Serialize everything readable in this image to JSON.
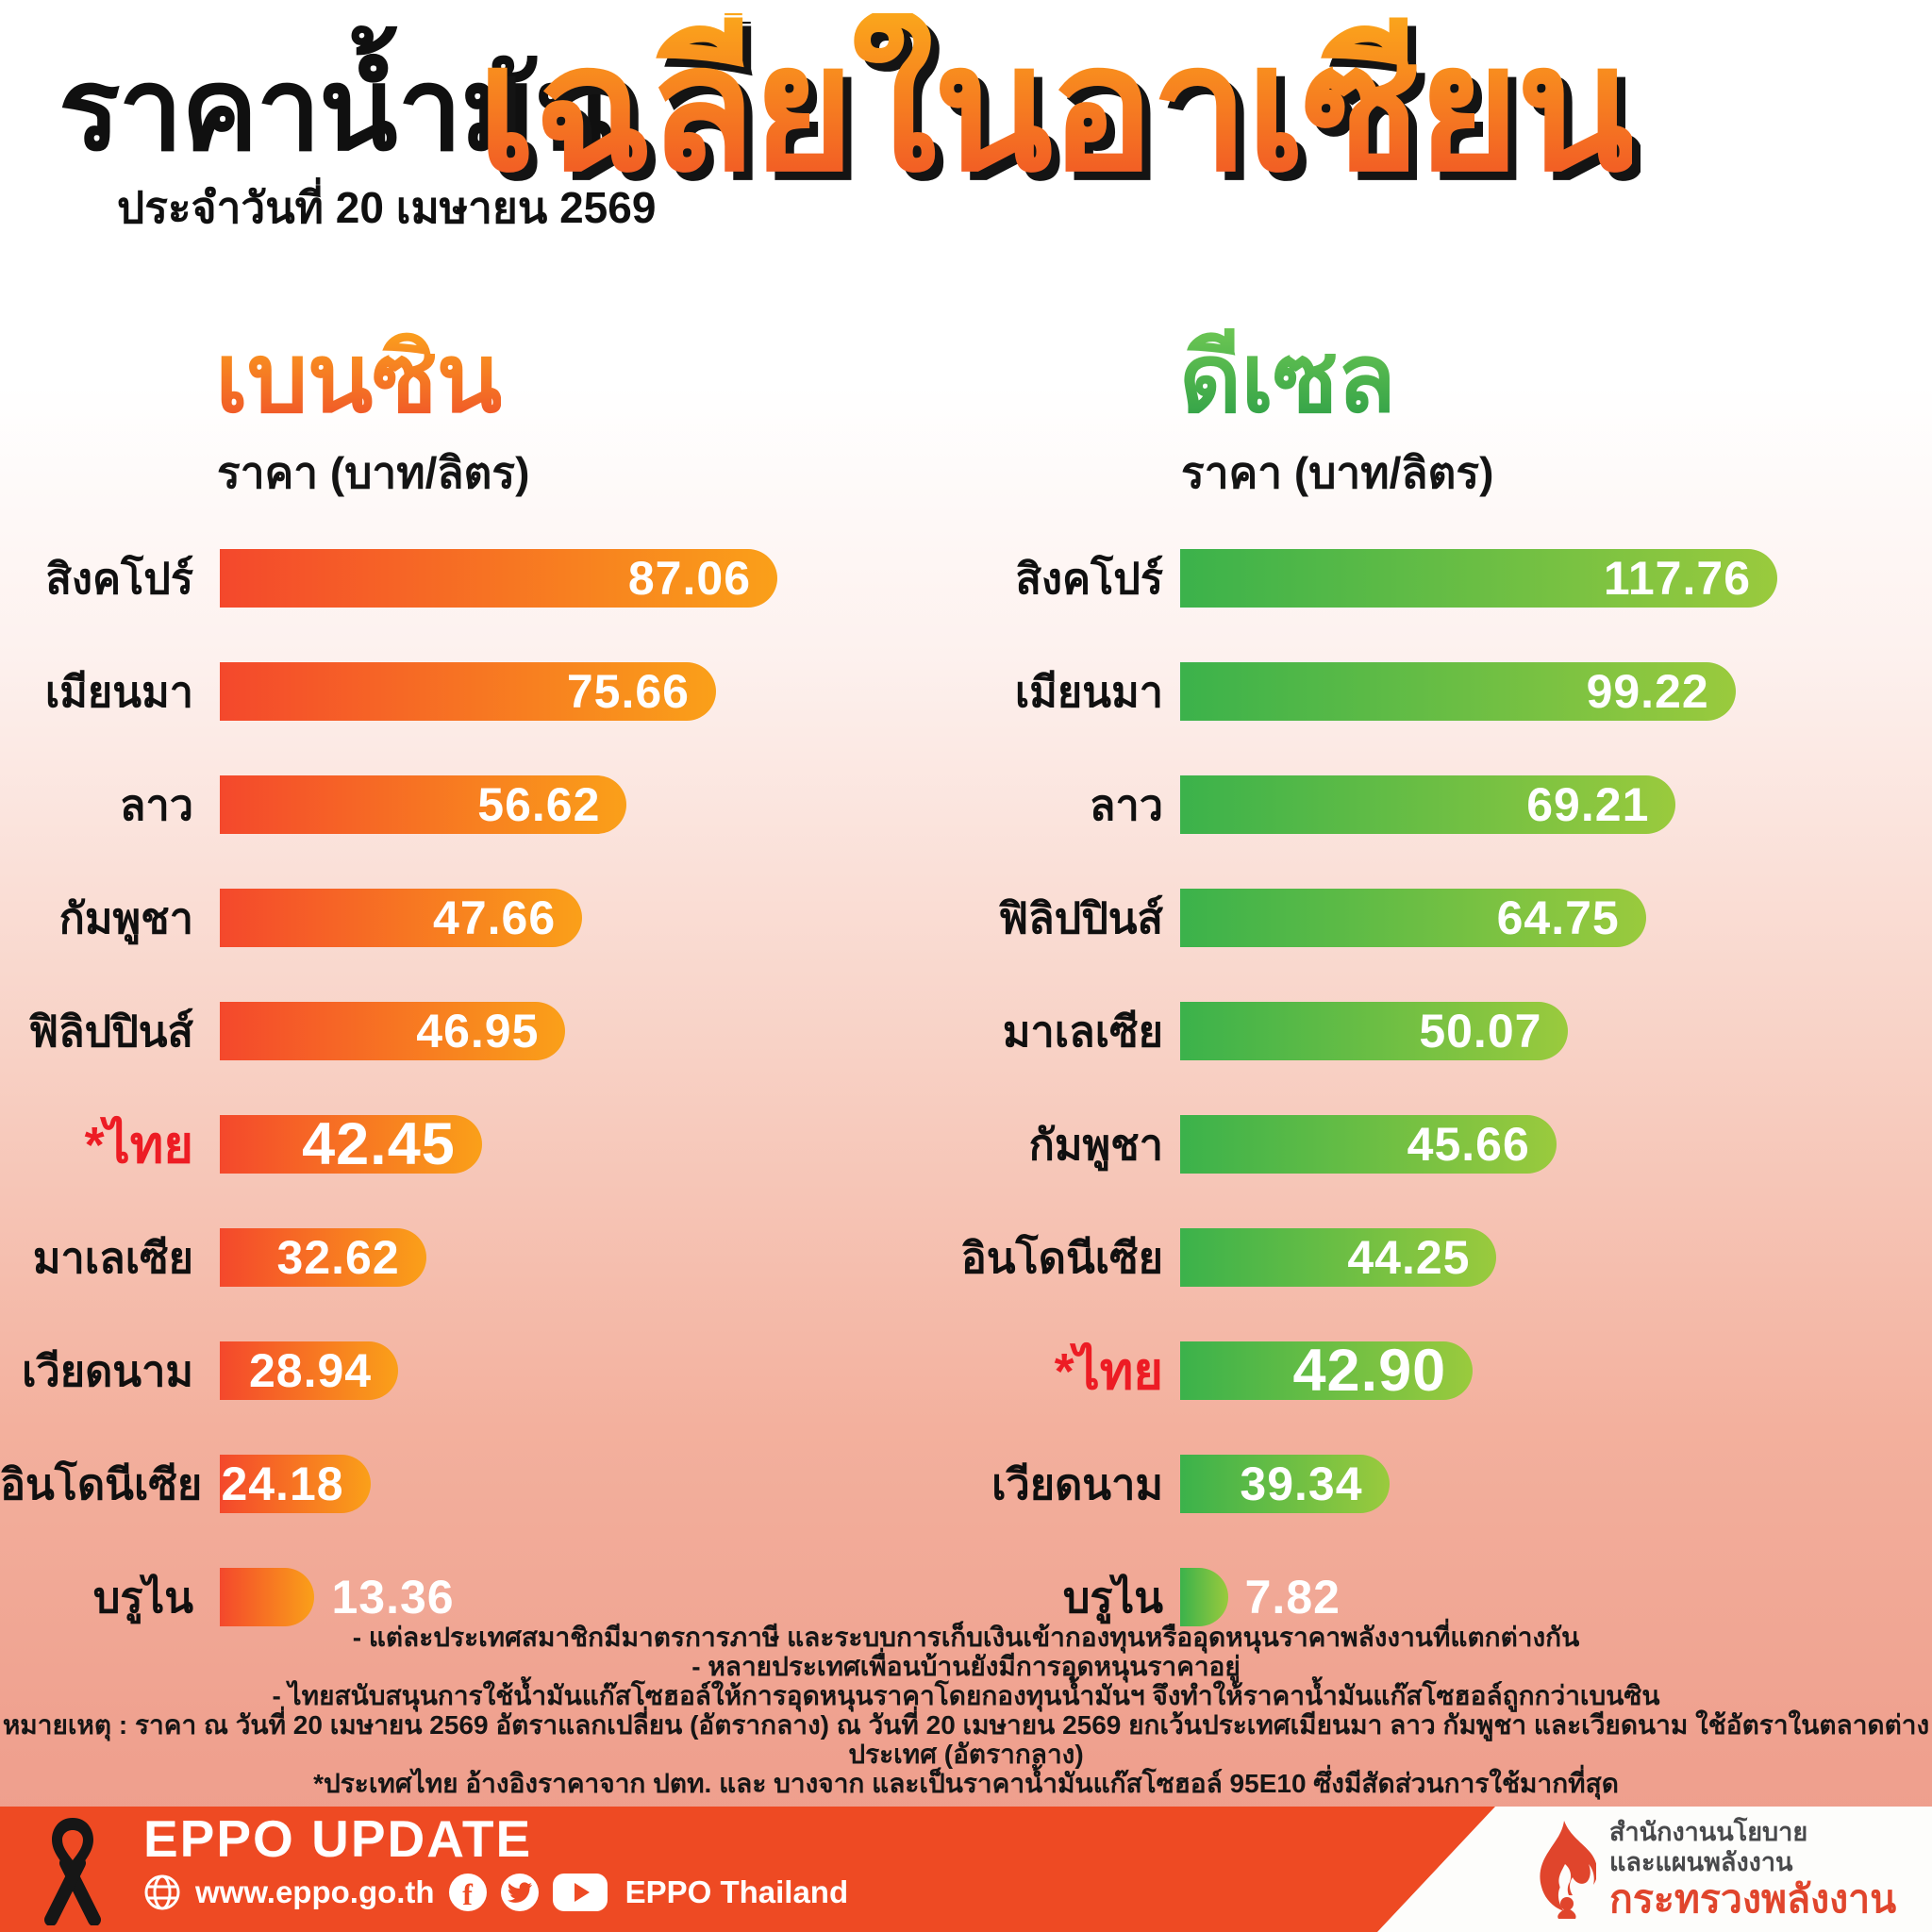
{
  "header": {
    "title_black": "ราคาน้ำมัน",
    "date_line": "ประจำวันที่ 20 เมษายน 2569",
    "title_orange": "เฉลี่ยในอาเซียน"
  },
  "chart_data": [
    {
      "id": "benzin",
      "type": "bar",
      "orientation": "horizontal",
      "title": "เบนซิน",
      "unit": "ราคา (บาท/ลิตร)",
      "theme": "orange",
      "highlight_category": "*ไทย",
      "categories": [
        "สิงคโปร์",
        "เมียนมา",
        "ลาว",
        "กัมพูชา",
        "ฟิลิปปินส์",
        "*ไทย",
        "มาเลเซีย",
        "เวียดนาม",
        "อินโดนีเซีย",
        "บรูไน"
      ],
      "values": [
        87.06,
        75.66,
        56.62,
        47.66,
        46.95,
        42.45,
        32.62,
        28.94,
        24.18,
        13.36
      ],
      "value_labels": [
        "87.06",
        "75.66",
        "56.62",
        "47.66",
        "46.95",
        "42.45",
        "32.62",
        "28.94",
        "24.18",
        "13.36"
      ],
      "bar_length_pct": [
        100,
        89,
        73,
        65,
        62,
        47,
        37,
        32,
        27,
        17
      ],
      "xlim": [
        0,
        87.06
      ],
      "grid": false,
      "legend": false
    },
    {
      "id": "diesel",
      "type": "bar",
      "orientation": "horizontal",
      "title": "ดีเซล",
      "unit": "ราคา (บาท/ลิตร)",
      "theme": "green",
      "highlight_category": "*ไทย",
      "categories": [
        "สิงคโปร์",
        "เมียนมา",
        "ลาว",
        "ฟิลิปปินส์",
        "มาเลเซีย",
        "กัมพูชา",
        "อินโดนีเซีย",
        "*ไทย",
        "เวียดนาม",
        "บรูไน"
      ],
      "values": [
        117.76,
        99.22,
        69.21,
        64.75,
        50.07,
        45.66,
        44.25,
        42.9,
        39.34,
        7.82
      ],
      "value_labels": [
        "117.76",
        "99.22",
        "69.21",
        "64.75",
        "50.07",
        "45.66",
        "44.25",
        "42.90",
        "39.34",
        "7.82"
      ],
      "bar_length_pct": [
        100,
        93,
        83,
        78,
        65,
        63,
        53,
        49,
        35,
        8
      ],
      "xlim": [
        0,
        117.76
      ],
      "grid": false,
      "legend": false
    }
  ],
  "footnotes": [
    "- แต่ละประเทศสมาชิกมีมาตรการภาษี และระบบการเก็บเงินเข้ากองทุนหรืออุดหนุนราคาพลังงานที่แตกต่างกัน",
    "- หลายประเทศเพื่อนบ้านยังมีการอุดหนุนราคาอยู่",
    "- ไทยสนับสนุนการใช้น้ำมันแก๊สโซฮอล์ให้การอุดหนุนราคาโดยกองทุนน้ำมันฯ จึงทำให้ราคาน้ำมันแก๊สโซฮอล์ถูกกว่าเบนซิน",
    "หมายเหตุ : ราคา ณ วันที่ 20 เมษายน 2569 อัตราแลกเปลี่ยน (อัตรากลาง) ณ วันที่ 20 เมษายน 2569 ยกเว้นประเทศเมียนมา ลาว กัมพูชา และเวียดนาม ใช้อัตราในตลาดต่างประเทศ (อัตรากลาง)",
    "*ประเทศไทย อ้างอิงราคาจาก ปตท. และ บางจาก และเป็นราคาน้ำมันแก๊สโซฮอล์ 95E10 ซึ่งมีสัดส่วนการใช้มากที่สุด"
  ],
  "footer": {
    "brand": "EPPO UPDATE",
    "website": "www.eppo.go.th",
    "social_caption": "EPPO Thailand",
    "org_line1": "สำนักงานนโยบาย",
    "org_line2": "และแผนพลังงาน",
    "org_line3": "กระทรวงพลังงาน"
  },
  "colors": {
    "accent_title_top": "#fba61b",
    "accent_title_bottom": "#f04f27",
    "benzin_title_top": "#fba21d",
    "benzin_title_bottom": "#ef4f2a",
    "diesel_title_top": "#6cc653",
    "diesel_title_bottom": "#2d9f47",
    "orange_bar_start": "#f4482c",
    "orange_bar_end": "#faa019",
    "green_bar_start": "#3bb24b",
    "green_bar_end": "#9aca3d",
    "highlight_label": "#ed1c24",
    "banner_bg": "#ee4a23",
    "flame_red": "#e0452c",
    "page_bottom": "#ee9c8a"
  }
}
